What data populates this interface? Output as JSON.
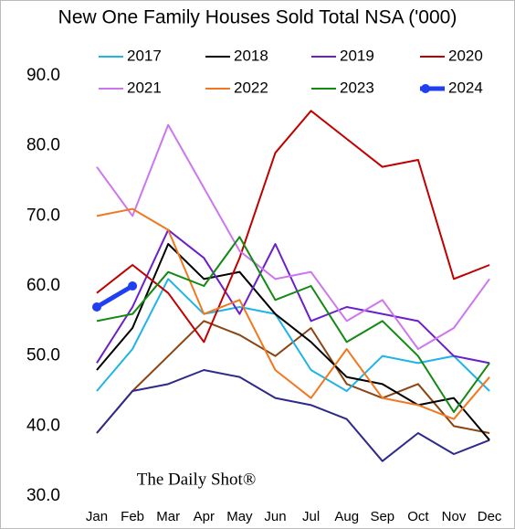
{
  "chart_data": {
    "type": "line",
    "title": "New One Family Houses Sold Total NSA ('000)",
    "watermark": "The Daily Shot®",
    "categories": [
      "Jan",
      "Feb",
      "Mar",
      "Apr",
      "May",
      "Jun",
      "Jul",
      "Aug",
      "Sep",
      "Oct",
      "Nov",
      "Dec"
    ],
    "ylim": [
      30,
      90
    ],
    "yticks": [
      {
        "value": 30,
        "label": "30.0"
      },
      {
        "value": 40,
        "label": "40.0"
      },
      {
        "value": 50,
        "label": "50.0"
      },
      {
        "value": 60,
        "label": "60.0"
      },
      {
        "value": 70,
        "label": "70.0"
      },
      {
        "value": 80,
        "label": "80.0"
      },
      {
        "value": 90,
        "label": "90.0"
      }
    ],
    "grid": false,
    "series": [
      {
        "color": "#8b4513",
        "values": [
          39,
          45,
          50,
          55,
          53,
          50,
          54,
          46,
          44,
          46,
          40,
          39
        ]
      },
      {
        "color": "#2e2a8a",
        "values": [
          39,
          45,
          46,
          48,
          47,
          44,
          43,
          41,
          35,
          39,
          36,
          38
        ]
      },
      {
        "name": "2017",
        "color": "#1fb4e6",
        "values": [
          45,
          51,
          61,
          56,
          57,
          56,
          48,
          45,
          50,
          49,
          50,
          45
        ]
      },
      {
        "name": "2018",
        "color": "#000000",
        "values": [
          48,
          54,
          66,
          61,
          62,
          56,
          52,
          47,
          46,
          43,
          44,
          38
        ]
      },
      {
        "name": "2019",
        "color": "#6a1fc8",
        "values": [
          49,
          57,
          68,
          64,
          56,
          66,
          55,
          57,
          56,
          55,
          50,
          49
        ]
      },
      {
        "name": "2020",
        "color": "#c00000",
        "values": [
          59,
          63,
          59,
          52,
          64,
          79,
          85,
          81,
          77,
          78,
          61,
          63
        ]
      },
      {
        "name": "2021",
        "color": "#cc77ee",
        "values": [
          77,
          70,
          83,
          74,
          65,
          61,
          62,
          55,
          58,
          51,
          54,
          61
        ]
      },
      {
        "name": "2022",
        "color": "#f07820",
        "values": [
          70,
          71,
          68,
          56,
          58,
          48,
          44,
          51,
          44,
          43,
          41,
          47
        ]
      },
      {
        "name": "2023",
        "color": "#138a13",
        "values": [
          55,
          56,
          62,
          60,
          67,
          58,
          60,
          52,
          55,
          50,
          42,
          49
        ]
      },
      {
        "name": "2024",
        "color": "#1f3ff0",
        "values": [
          57,
          60,
          null,
          null,
          null,
          null,
          null,
          null,
          null,
          null,
          null,
          null
        ]
      }
    ]
  }
}
